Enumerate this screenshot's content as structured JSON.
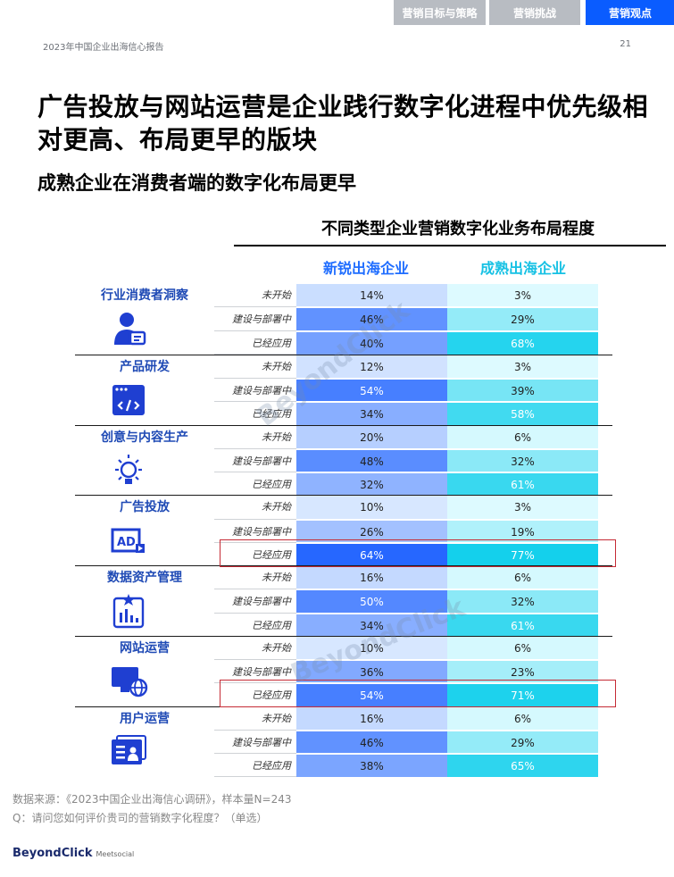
{
  "tabs": [
    "营销目标与策略",
    "营销挑战",
    "营销观点"
  ],
  "header": {
    "report": "2023年中国企业出海信心报告",
    "page": "21"
  },
  "title": "广告投放与网站运营是企业践行数字化进程中优先级相对更高、布局更早的版块",
  "subtitle": "成熟企业在消费者端的数字化布局更早",
  "chart_data": {
    "type": "table",
    "title": "不同类型企业营销数字化业务布局程度",
    "columns": [
      "新锐出海企业",
      "成熟出海企业"
    ],
    "stages": [
      "未开始",
      "建设与部署中",
      "已经应用"
    ],
    "groups": [
      {
        "name": "行业消费者洞察",
        "icon": "consumer-icon",
        "values": [
          [
            "14%",
            "3%"
          ],
          [
            "46%",
            "29%"
          ],
          [
            "40%",
            "68%"
          ]
        ]
      },
      {
        "name": "产品研发",
        "icon": "code-icon",
        "values": [
          [
            "12%",
            "3%"
          ],
          [
            "54%",
            "39%"
          ],
          [
            "34%",
            "58%"
          ]
        ]
      },
      {
        "name": "创意与内容生产",
        "icon": "lightbulb-icon",
        "values": [
          [
            "20%",
            "6%"
          ],
          [
            "48%",
            "32%"
          ],
          [
            "32%",
            "61%"
          ]
        ]
      },
      {
        "name": "广告投放",
        "icon": "ad-icon",
        "values": [
          [
            "10%",
            "3%"
          ],
          [
            "26%",
            "19%"
          ],
          [
            "64%",
            "77%"
          ]
        ]
      },
      {
        "name": "数据资产管理",
        "icon": "data-chart-icon",
        "values": [
          [
            "16%",
            "6%"
          ],
          [
            "50%",
            "32%"
          ],
          [
            "34%",
            "61%"
          ]
        ]
      },
      {
        "name": "网站运营",
        "icon": "website-icon",
        "values": [
          [
            "10%",
            "6%"
          ],
          [
            "36%",
            "23%"
          ],
          [
            "54%",
            "71%"
          ]
        ]
      },
      {
        "name": "用户运营",
        "icon": "user-card-icon",
        "values": [
          [
            "16%",
            "6%"
          ],
          [
            "46%",
            "29%"
          ],
          [
            "38%",
            "65%"
          ]
        ]
      }
    ],
    "highlighted_rows": [
      "广告投放 已经应用",
      "网站运营 已经应用"
    ]
  },
  "source": "数据来源：《2023中国企业出海信心调研》，样本量N=243",
  "question": "Q：请问您如何评价贵司的营销数字化程度？（单选）",
  "logo": {
    "main": "BeyondClick",
    "sub": "Meetsocial"
  },
  "watermark": "BeyondClick"
}
